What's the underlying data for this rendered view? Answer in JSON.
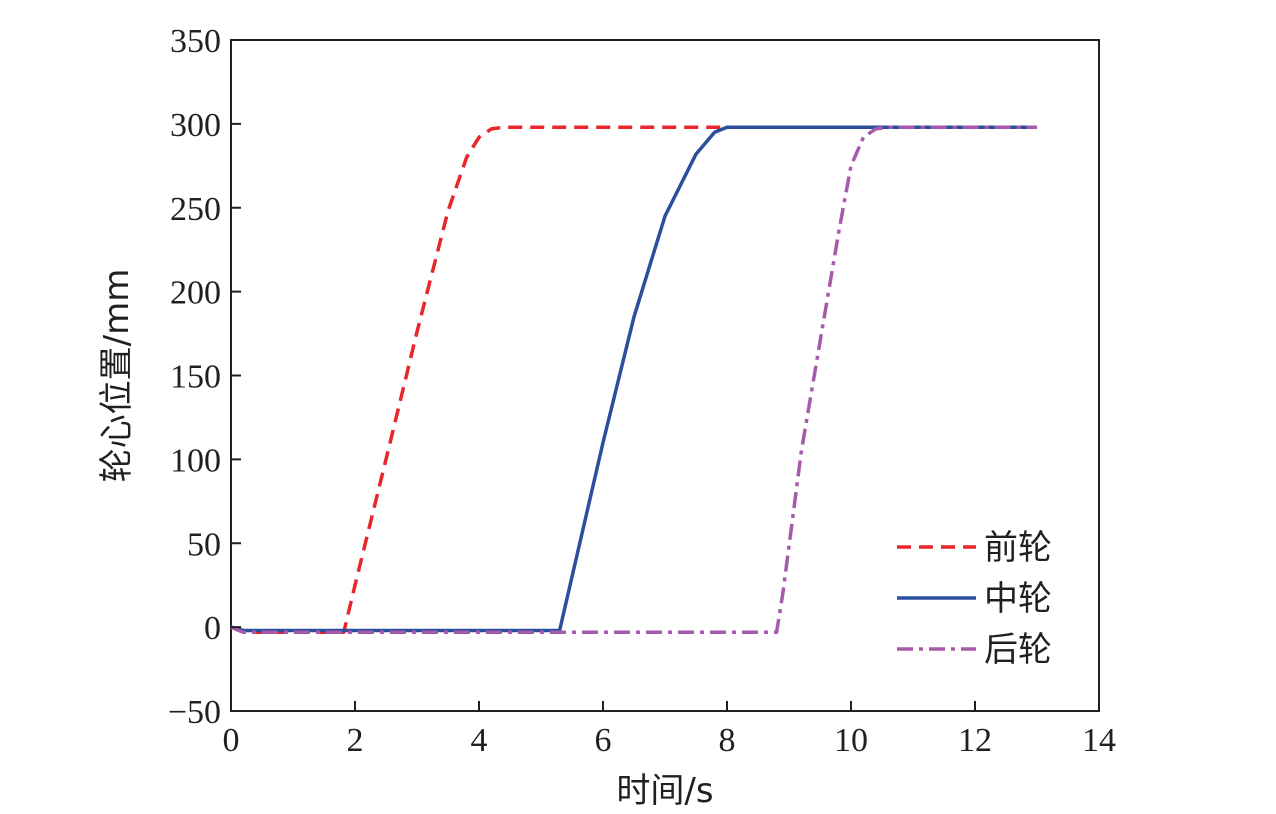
{
  "chart_data": {
    "type": "line",
    "xlabel": "时间/s",
    "ylabel": "轮心位置/mm",
    "xlim": [
      0,
      14
    ],
    "ylim": [
      -50,
      350
    ],
    "xticks": [
      0,
      2,
      4,
      6,
      8,
      10,
      12,
      14
    ],
    "xtick_labels": [
      "0",
      "2",
      "4",
      "6",
      "8",
      "10",
      "12",
      "14"
    ],
    "yticks": [
      -50,
      0,
      50,
      100,
      150,
      200,
      250,
      300,
      350
    ],
    "ytick_labels": [
      "−50",
      "0",
      "50",
      "100",
      "150",
      "200",
      "250",
      "300",
      "350"
    ],
    "grid": false,
    "legend_position": "bottom-right",
    "series": [
      {
        "name": "前轮",
        "color": "#e8262b",
        "dash": "dashed",
        "x": [
          0,
          0.2,
          0.5,
          1.0,
          1.5,
          1.82,
          2.0,
          2.5,
          3.0,
          3.5,
          3.8,
          4.0,
          4.2,
          4.4,
          4.6,
          5.0,
          6.0,
          8.0,
          10.0,
          12.0,
          13.0
        ],
        "y": [
          0,
          -3,
          -3,
          -3,
          -3,
          -3,
          25,
          100,
          176,
          248,
          280,
          292,
          297,
          298,
          298,
          298,
          298,
          298,
          298,
          298,
          298
        ]
      },
      {
        "name": "中轮",
        "color": "#2a4f9c",
        "dash": "solid",
        "x": [
          0,
          0.2,
          0.5,
          1.0,
          2.0,
          3.0,
          4.0,
          5.0,
          5.3,
          5.5,
          6.0,
          6.5,
          7.0,
          7.5,
          7.8,
          8.0,
          8.5,
          10.0,
          12.0,
          13.0
        ],
        "y": [
          0,
          -2,
          -2,
          -2,
          -2,
          -2,
          -2,
          -2,
          -2,
          30,
          110,
          185,
          245,
          282,
          295,
          298,
          298,
          298,
          298,
          298
        ]
      },
      {
        "name": "后轮",
        "color": "#a55aab",
        "dash": "dashdot",
        "x": [
          0,
          0.2,
          1.0,
          3.0,
          5.0,
          7.0,
          8.5,
          8.8,
          8.9,
          9.2,
          9.5,
          9.8,
          10.0,
          10.2,
          10.4,
          10.6,
          11.0,
          12.0,
          13.0
        ],
        "y": [
          0,
          -3,
          -3,
          -3,
          -3,
          -3,
          -3,
          -3,
          20,
          105,
          170,
          235,
          275,
          292,
          297,
          298,
          298,
          298,
          298
        ]
      }
    ]
  }
}
